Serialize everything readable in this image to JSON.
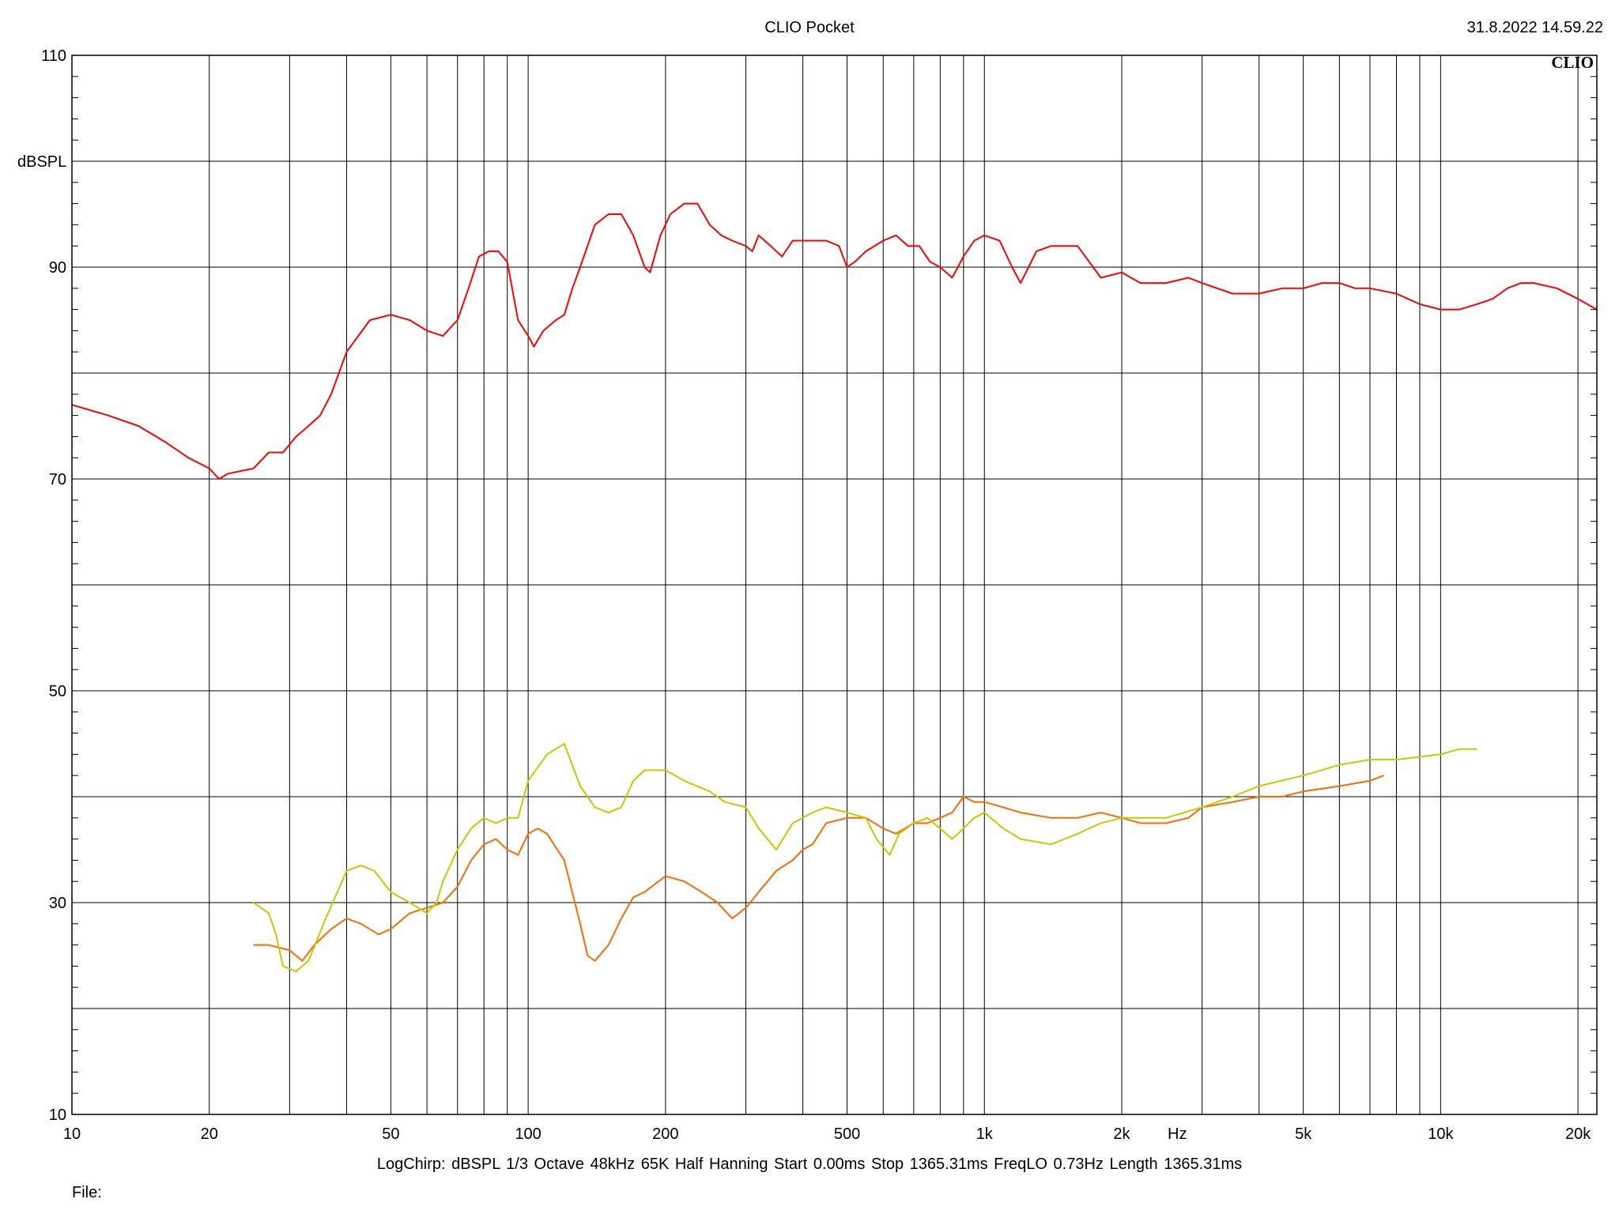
{
  "header": {
    "title": "CLIO Pocket",
    "timestamp": "31.8.2022 14.59.22",
    "brand": "CLIO"
  },
  "footer": {
    "settings": "LogChirp:  dBSPL   1/3 Octave   48kHz   65K   Half Hanning   Start 0.00ms   Stop 1365.31ms   FreqLO 0.73Hz   Length 1365.31ms",
    "file_label": "File:"
  },
  "colors": {
    "grid": "#000000",
    "red": "#ff0000",
    "orange": "#ff6a00",
    "yellow": "#c8c800"
  },
  "chart_data": {
    "type": "line",
    "x_scale": "log",
    "xlim": [
      10,
      22000
    ],
    "ylim": [
      10,
      110
    ],
    "ylabel": "dBSPL",
    "xlabel": "Hz",
    "grid": true,
    "y_ticks": [
      {
        "value": 110,
        "label": "110"
      },
      {
        "value": 100,
        "label": ""
      },
      {
        "value": 90,
        "label": "90"
      },
      {
        "value": 80,
        "label": ""
      },
      {
        "value": 70,
        "label": "70"
      },
      {
        "value": 60,
        "label": ""
      },
      {
        "value": 50,
        "label": "50"
      },
      {
        "value": 40,
        "label": ""
      },
      {
        "value": 30,
        "label": "30"
      },
      {
        "value": 20,
        "label": ""
      },
      {
        "value": 10,
        "label": "10"
      }
    ],
    "x_ticks": [
      {
        "value": 10,
        "label": "10"
      },
      {
        "value": 20,
        "label": "20"
      },
      {
        "value": 50,
        "label": "50"
      },
      {
        "value": 100,
        "label": "100"
      },
      {
        "value": 200,
        "label": "200"
      },
      {
        "value": 500,
        "label": "500"
      },
      {
        "value": 1000,
        "label": "1k"
      },
      {
        "value": 2000,
        "label": "2k"
      },
      {
        "value": 5000,
        "label": "5k"
      },
      {
        "value": 10000,
        "label": "10k"
      },
      {
        "value": 20000,
        "label": "20k"
      }
    ],
    "x_grid": [
      10,
      20,
      30,
      40,
      50,
      60,
      70,
      80,
      90,
      100,
      200,
      300,
      400,
      500,
      600,
      700,
      800,
      900,
      1000,
      2000,
      3000,
      4000,
      5000,
      6000,
      7000,
      8000,
      9000,
      10000,
      20000
    ],
    "series": [
      {
        "color": "#ff0000",
        "points": [
          [
            10,
            77
          ],
          [
            12,
            76
          ],
          [
            14,
            75
          ],
          [
            16,
            73.5
          ],
          [
            18,
            72
          ],
          [
            20,
            71
          ],
          [
            21,
            70
          ],
          [
            22,
            70.5
          ],
          [
            25,
            71
          ],
          [
            27,
            72.5
          ],
          [
            29,
            72.5
          ],
          [
            31,
            74
          ],
          [
            33,
            75
          ],
          [
            35,
            76
          ],
          [
            37,
            78
          ],
          [
            40,
            82
          ],
          [
            45,
            85
          ],
          [
            50,
            85.5
          ],
          [
            55,
            85
          ],
          [
            60,
            84
          ],
          [
            65,
            83.5
          ],
          [
            70,
            85
          ],
          [
            74,
            88
          ],
          [
            78,
            91
          ],
          [
            82,
            91.5
          ],
          [
            86,
            91.5
          ],
          [
            90,
            90.5
          ],
          [
            95,
            85
          ],
          [
            100,
            83.5
          ],
          [
            103,
            82.5
          ],
          [
            108,
            84
          ],
          [
            115,
            85
          ],
          [
            120,
            85.5
          ],
          [
            125,
            88
          ],
          [
            130,
            90
          ],
          [
            140,
            94
          ],
          [
            150,
            95
          ],
          [
            160,
            95
          ],
          [
            170,
            93
          ],
          [
            180,
            90
          ],
          [
            185,
            89.5
          ],
          [
            195,
            93
          ],
          [
            205,
            95
          ],
          [
            220,
            96
          ],
          [
            235,
            96
          ],
          [
            250,
            94
          ],
          [
            265,
            93
          ],
          [
            280,
            92.5
          ],
          [
            300,
            92
          ],
          [
            310,
            91.5
          ],
          [
            320,
            93
          ],
          [
            340,
            92
          ],
          [
            360,
            91
          ],
          [
            380,
            92.5
          ],
          [
            400,
            92.5
          ],
          [
            450,
            92.5
          ],
          [
            480,
            92
          ],
          [
            500,
            90
          ],
          [
            520,
            90.5
          ],
          [
            550,
            91.5
          ],
          [
            600,
            92.5
          ],
          [
            640,
            93
          ],
          [
            680,
            92
          ],
          [
            720,
            92
          ],
          [
            760,
            90.5
          ],
          [
            800,
            90
          ],
          [
            850,
            89
          ],
          [
            900,
            91
          ],
          [
            950,
            92.5
          ],
          [
            1000,
            93
          ],
          [
            1080,
            92.5
          ],
          [
            1150,
            90
          ],
          [
            1200,
            88.5
          ],
          [
            1250,
            90
          ],
          [
            1300,
            91.5
          ],
          [
            1400,
            92
          ],
          [
            1600,
            92
          ],
          [
            1800,
            89
          ],
          [
            2000,
            89.5
          ],
          [
            2200,
            88.5
          ],
          [
            2500,
            88.5
          ],
          [
            2800,
            89
          ],
          [
            3000,
            88.5
          ],
          [
            3500,
            87.5
          ],
          [
            4000,
            87.5
          ],
          [
            4500,
            88
          ],
          [
            5000,
            88
          ],
          [
            5500,
            88.5
          ],
          [
            6000,
            88.5
          ],
          [
            6500,
            88
          ],
          [
            7000,
            88
          ],
          [
            8000,
            87.5
          ],
          [
            9000,
            86.5
          ],
          [
            10000,
            86
          ],
          [
            11000,
            86
          ],
          [
            12000,
            86.5
          ],
          [
            13000,
            87
          ],
          [
            14000,
            88
          ],
          [
            15000,
            88.5
          ],
          [
            16000,
            88.5
          ],
          [
            18000,
            88
          ],
          [
            20000,
            87
          ],
          [
            22000,
            86
          ]
        ]
      },
      {
        "color": "#ff6a00",
        "points": [
          [
            25,
            26
          ],
          [
            27,
            26
          ],
          [
            30,
            25.5
          ],
          [
            32,
            24.5
          ],
          [
            34,
            26
          ],
          [
            37,
            27.5
          ],
          [
            40,
            28.5
          ],
          [
            43,
            28
          ],
          [
            47,
            27
          ],
          [
            50,
            27.5
          ],
          [
            55,
            29
          ],
          [
            60,
            29.5
          ],
          [
            65,
            30
          ],
          [
            70,
            31.5
          ],
          [
            75,
            34
          ],
          [
            80,
            35.5
          ],
          [
            85,
            36
          ],
          [
            90,
            35
          ],
          [
            95,
            34.5
          ],
          [
            100,
            36.5
          ],
          [
            105,
            37
          ],
          [
            110,
            36.5
          ],
          [
            120,
            34
          ],
          [
            130,
            28
          ],
          [
            135,
            25
          ],
          [
            140,
            24.5
          ],
          [
            150,
            26
          ],
          [
            160,
            28.5
          ],
          [
            170,
            30.5
          ],
          [
            180,
            31
          ],
          [
            200,
            32.5
          ],
          [
            220,
            32
          ],
          [
            240,
            31
          ],
          [
            260,
            30
          ],
          [
            280,
            28.5
          ],
          [
            300,
            29.5
          ],
          [
            320,
            31
          ],
          [
            350,
            33
          ],
          [
            380,
            34
          ],
          [
            400,
            35
          ],
          [
            420,
            35.5
          ],
          [
            450,
            37.5
          ],
          [
            500,
            38
          ],
          [
            550,
            38
          ],
          [
            600,
            37
          ],
          [
            640,
            36.5
          ],
          [
            700,
            37.5
          ],
          [
            750,
            37.5
          ],
          [
            800,
            38
          ],
          [
            850,
            38.5
          ],
          [
            900,
            40
          ],
          [
            950,
            39.5
          ],
          [
            1000,
            39.5
          ],
          [
            1100,
            39
          ],
          [
            1200,
            38.5
          ],
          [
            1400,
            38
          ],
          [
            1600,
            38
          ],
          [
            1800,
            38.5
          ],
          [
            2000,
            38
          ],
          [
            2200,
            37.5
          ],
          [
            2500,
            37.5
          ],
          [
            2800,
            38
          ],
          [
            3000,
            39
          ],
          [
            3500,
            39.5
          ],
          [
            4000,
            40
          ],
          [
            4500,
            40
          ],
          [
            5000,
            40.5
          ],
          [
            6000,
            41
          ],
          [
            7000,
            41.5
          ],
          [
            7500,
            42
          ]
        ]
      },
      {
        "color": "#c8c800",
        "points": [
          [
            25,
            30
          ],
          [
            27,
            29
          ],
          [
            28,
            27
          ],
          [
            29,
            24
          ],
          [
            31,
            23.5
          ],
          [
            33,
            24.5
          ],
          [
            36,
            28.5
          ],
          [
            40,
            33
          ],
          [
            43,
            33.5
          ],
          [
            46,
            33
          ],
          [
            50,
            31
          ],
          [
            55,
            30
          ],
          [
            60,
            29
          ],
          [
            63,
            30
          ],
          [
            65,
            32
          ],
          [
            70,
            35
          ],
          [
            75,
            37
          ],
          [
            80,
            38
          ],
          [
            85,
            37.5
          ],
          [
            90,
            38
          ],
          [
            95,
            38
          ],
          [
            100,
            41.5
          ],
          [
            110,
            44
          ],
          [
            120,
            45
          ],
          [
            130,
            41
          ],
          [
            140,
            39
          ],
          [
            150,
            38.5
          ],
          [
            160,
            39
          ],
          [
            170,
            41.5
          ],
          [
            180,
            42.5
          ],
          [
            200,
            42.5
          ],
          [
            220,
            41.5
          ],
          [
            250,
            40.5
          ],
          [
            270,
            39.5
          ],
          [
            300,
            39
          ],
          [
            320,
            37
          ],
          [
            350,
            35
          ],
          [
            380,
            37.5
          ],
          [
            420,
            38.5
          ],
          [
            450,
            39
          ],
          [
            500,
            38.5
          ],
          [
            550,
            38
          ],
          [
            580,
            36
          ],
          [
            620,
            34.5
          ],
          [
            650,
            36.5
          ],
          [
            700,
            37.5
          ],
          [
            750,
            38
          ],
          [
            800,
            37
          ],
          [
            850,
            36
          ],
          [
            900,
            37
          ],
          [
            950,
            38
          ],
          [
            1000,
            38.5
          ],
          [
            1100,
            37
          ],
          [
            1200,
            36
          ],
          [
            1400,
            35.5
          ],
          [
            1600,
            36.5
          ],
          [
            1800,
            37.5
          ],
          [
            2000,
            38
          ],
          [
            2500,
            38
          ],
          [
            3000,
            39
          ],
          [
            3500,
            40
          ],
          [
            4000,
            41
          ],
          [
            5000,
            42
          ],
          [
            6000,
            43
          ],
          [
            7000,
            43.5
          ],
          [
            8000,
            43.5
          ],
          [
            10000,
            44
          ],
          [
            11000,
            44.5
          ],
          [
            12000,
            44.5
          ]
        ]
      }
    ]
  }
}
